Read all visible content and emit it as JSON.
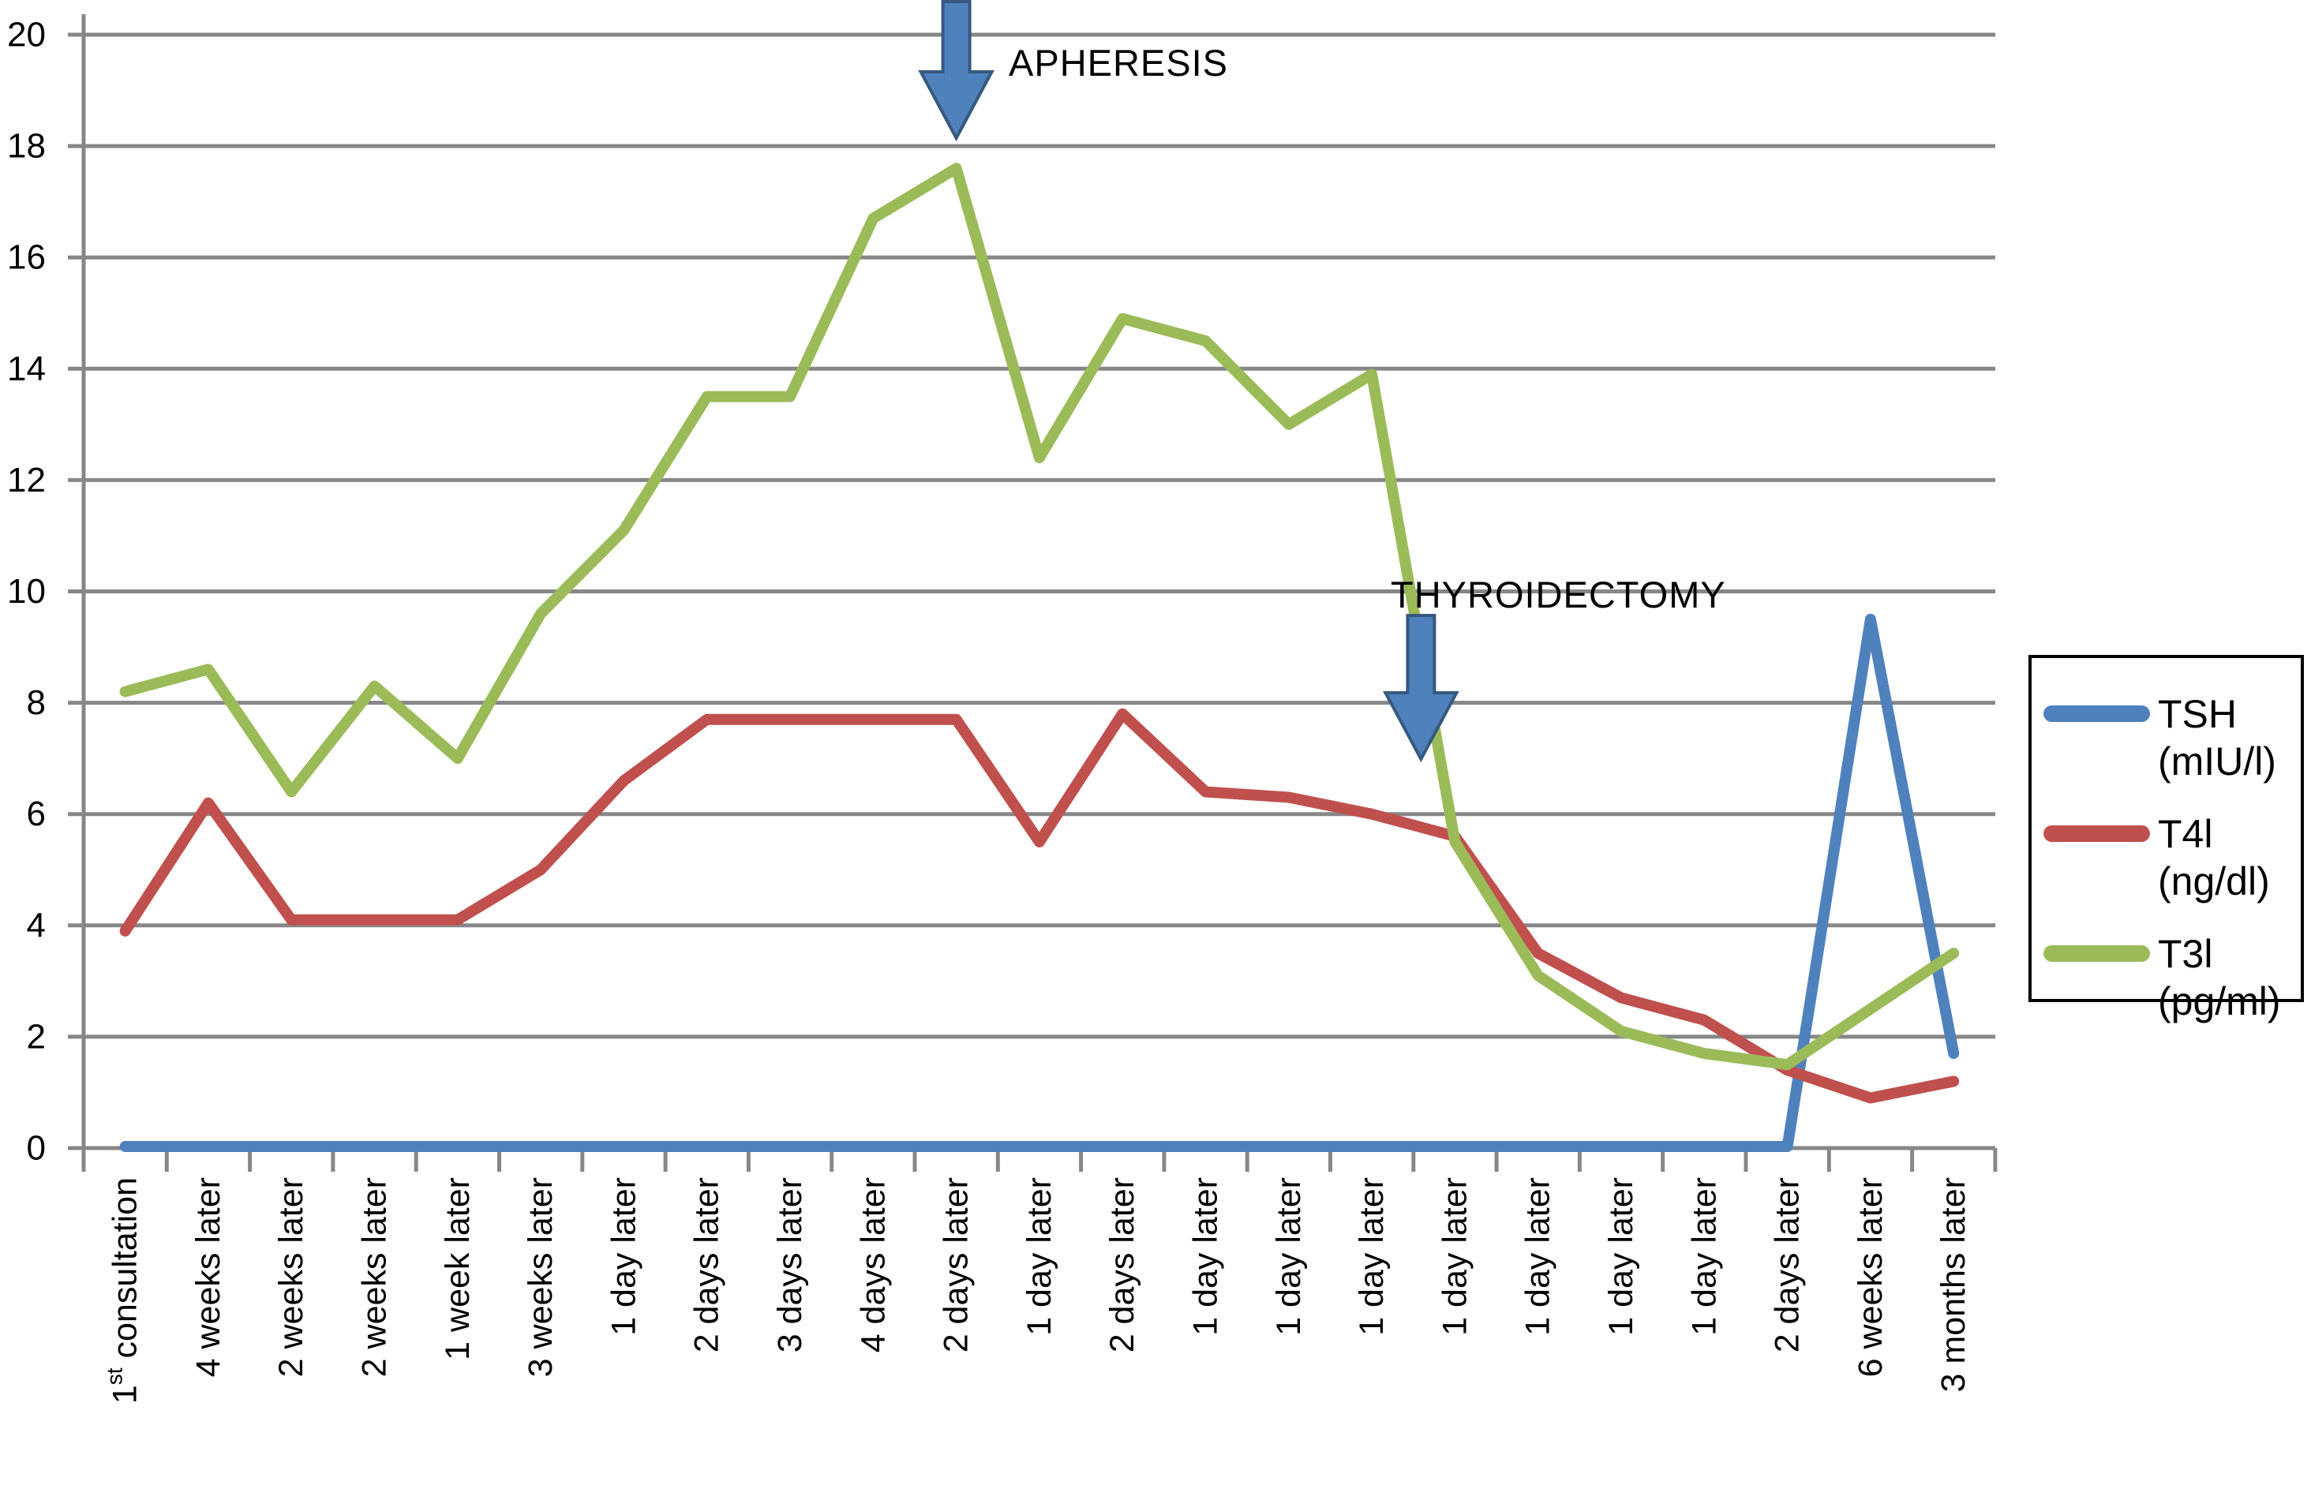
{
  "annotations": {
    "apheresis": "APHERESIS",
    "thyroidectomy": "THYROIDECTOMY"
  },
  "chart_data": {
    "type": "line",
    "categories": [
      "1st consultation",
      "4 weeks later",
      "2 weeks later",
      "2 weeks later",
      "1 week later",
      "3 weeks later",
      "1 day later",
      "2 days later",
      "3 days later",
      "4 days later",
      "2 days later",
      "1 day later",
      "2 days later",
      "1 day later",
      "1 day later",
      "1 day later",
      "1 day later",
      "1 day later",
      "1 day later",
      "1 day later",
      "2 days later",
      "6 weeks later",
      "3 months later"
    ],
    "superscript_first_label": {
      "base": "1",
      "sup": "st",
      "rest": " consultation"
    },
    "series": [
      {
        "name": "TSH (mIU/l)",
        "legend_label": "TSH",
        "legend_unit": "(mIU/l)",
        "color": "#4F81BD",
        "values": [
          0,
          0,
          0,
          0,
          0,
          0,
          0,
          0,
          0,
          0,
          0,
          0,
          0,
          0,
          0,
          0,
          0,
          0,
          0,
          0,
          0,
          9.5,
          1.7
        ]
      },
      {
        "name": "T4l (ng/dl)",
        "legend_label": "T4l",
        "legend_unit": "(ng/dl)",
        "color": "#C0504D",
        "values": [
          3.9,
          6.2,
          4.1,
          4.1,
          4.1,
          5.0,
          6.6,
          7.7,
          7.7,
          7.7,
          7.7,
          5.5,
          7.8,
          6.4,
          6.3,
          6.0,
          5.6,
          3.5,
          2.7,
          2.3,
          1.4,
          0.9,
          1.2
        ]
      },
      {
        "name": "T3l (pg/ml)",
        "legend_label": "T3l",
        "legend_unit": "(pg/ml)",
        "color": "#9BBB59",
        "values": [
          8.2,
          8.6,
          6.4,
          8.3,
          7.0,
          9.6,
          11.1,
          13.5,
          13.5,
          16.7,
          17.6,
          12.4,
          14.9,
          14.5,
          13.0,
          13.9,
          5.5,
          3.1,
          2.1,
          1.7,
          1.5,
          2.5,
          3.5
        ]
      }
    ],
    "yticks": [
      0,
      2,
      4,
      6,
      8,
      10,
      12,
      14,
      16,
      18,
      20
    ],
    "ylim": [
      0,
      20
    ],
    "xlabel": "",
    "ylabel": "",
    "grid": true,
    "legend_position": "right",
    "annotation_events": [
      {
        "text": "APHERESIS",
        "category_index": 10
      },
      {
        "text": "THYROIDECTOMY",
        "category_index": 16
      }
    ],
    "colors": {
      "grid": "#878787",
      "axis": "#878787",
      "arrow_fill": "#4F81BD",
      "arrow_stroke": "#36597F",
      "text": "#000000"
    }
  }
}
